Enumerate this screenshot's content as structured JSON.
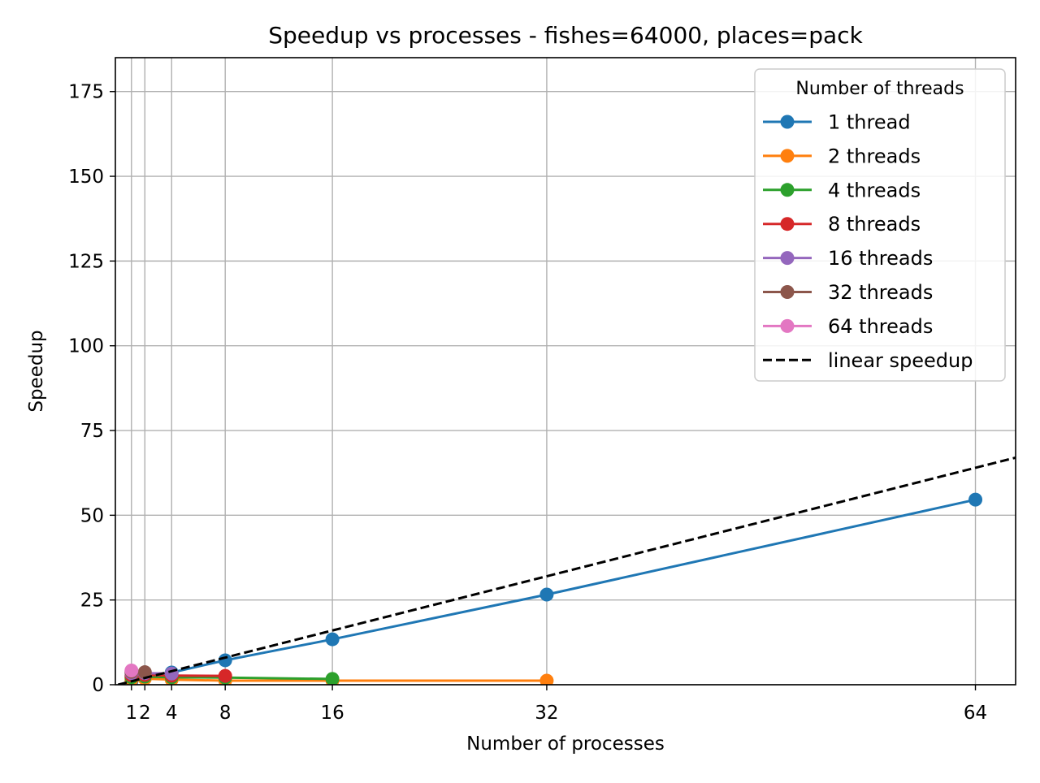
{
  "chart_data": {
    "type": "line",
    "title": "Speedup vs processes - fishes=64000, places=pack",
    "xlabel": "Number of processes",
    "ylabel": "Speedup",
    "xlim": [
      -0.2,
      67.0
    ],
    "ylim": [
      0,
      185
    ],
    "xticks": [
      1,
      2,
      4,
      8,
      16,
      32,
      64
    ],
    "xtick_labels": [
      "1",
      "2",
      "4",
      "8",
      "16",
      "32",
      "64"
    ],
    "yticks": [
      0,
      25,
      50,
      75,
      100,
      125,
      150,
      175
    ],
    "ytick_labels": [
      "0",
      "25",
      "50",
      "75",
      "100",
      "125",
      "150",
      "175"
    ],
    "grid": true,
    "legend": {
      "title": "Number of threads",
      "placement": "top-right"
    },
    "series": [
      {
        "name": "1 thread",
        "color": "#1f77b4",
        "marker": "circle",
        "x": [
          1,
          2,
          4,
          8,
          16,
          32,
          64
        ],
        "y": [
          1.0,
          1.9,
          3.6,
          7.2,
          13.4,
          26.6,
          54.6
        ]
      },
      {
        "name": "2 threads",
        "color": "#ff7f0e",
        "marker": "circle",
        "x": [
          1,
          2,
          4,
          8,
          16,
          32
        ],
        "y": [
          1.5,
          1.8,
          1.5,
          1.2,
          1.2,
          1.2
        ]
      },
      {
        "name": "4 threads",
        "color": "#2ca02c",
        "marker": "circle",
        "x": [
          1,
          2,
          4,
          8,
          16
        ],
        "y": [
          2.2,
          2.4,
          2.2,
          2.1,
          1.7
        ]
      },
      {
        "name": "8 threads",
        "color": "#d62728",
        "marker": "circle",
        "x": [
          1,
          2,
          4,
          8
        ],
        "y": [
          2.8,
          2.9,
          2.7,
          2.6
        ]
      },
      {
        "name": "16 threads",
        "color": "#9467bd",
        "marker": "circle",
        "x": [
          1,
          2,
          4
        ],
        "y": [
          3.4,
          3.4,
          3.3
        ]
      },
      {
        "name": "32 threads",
        "color": "#8c564b",
        "marker": "circle",
        "x": [
          1,
          2
        ],
        "y": [
          3.8,
          3.7
        ]
      },
      {
        "name": "64 threads",
        "color": "#e377c2",
        "marker": "circle",
        "x": [
          1
        ],
        "y": [
          4.2
        ]
      },
      {
        "name": "linear speedup",
        "color": "#000000",
        "style": "dashed",
        "x": [
          0,
          67
        ],
        "y": [
          0,
          67
        ]
      }
    ]
  }
}
